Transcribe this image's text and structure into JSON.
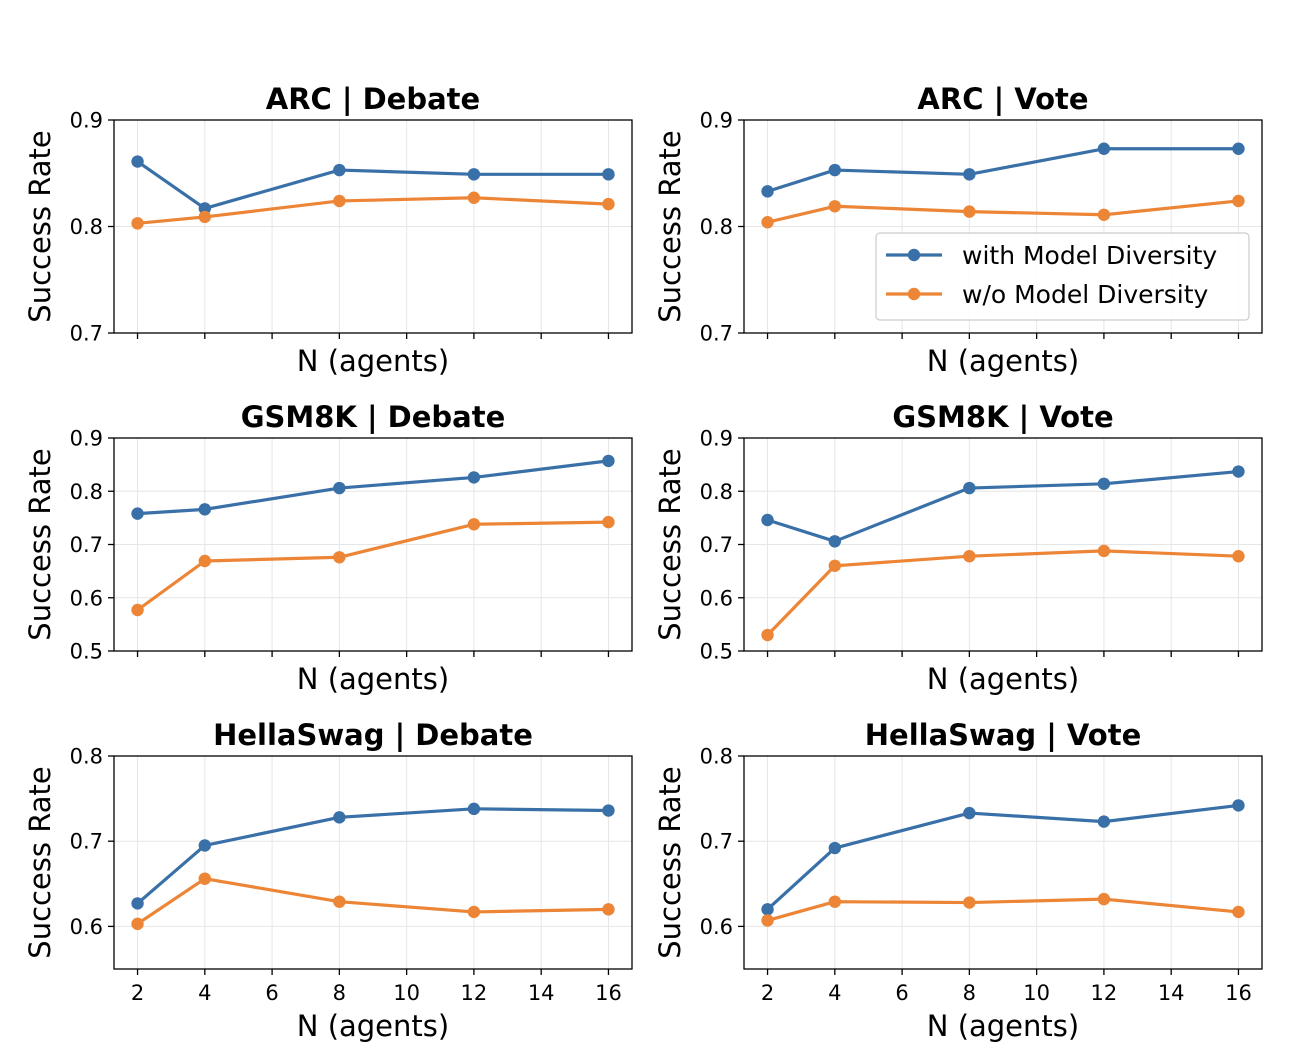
{
  "chart_data": [
    {
      "type": "line",
      "title": "ARC | Debate",
      "xlabel": "N (agents)",
      "ylabel": "Success Rate",
      "x": [
        2,
        4,
        8,
        12,
        16
      ],
      "xlim": [
        1.3,
        16.7
      ],
      "ylim": [
        0.7,
        0.9
      ],
      "xticks": [
        2,
        4,
        6,
        8,
        10,
        12,
        14,
        16
      ],
      "yticks": [
        0.7,
        0.8,
        0.9
      ],
      "show_xticklabels": false,
      "show_legend": false,
      "series": [
        {
          "name": "with Model Diversity",
          "color": "#3a70a8",
          "values": [
            0.861,
            0.817,
            0.853,
            0.849,
            0.849
          ]
        },
        {
          "name": "w/o Model Diversity",
          "color": "#ec8536",
          "values": [
            0.803,
            0.809,
            0.824,
            0.827,
            0.821
          ]
        }
      ]
    },
    {
      "type": "line",
      "title": "ARC | Vote",
      "xlabel": "N (agents)",
      "ylabel": "Success Rate",
      "x": [
        2,
        4,
        8,
        12,
        16
      ],
      "xlim": [
        1.3,
        16.7
      ],
      "ylim": [
        0.7,
        0.9
      ],
      "xticks": [
        2,
        4,
        6,
        8,
        10,
        12,
        14,
        16
      ],
      "yticks": [
        0.7,
        0.8,
        0.9
      ],
      "show_xticklabels": false,
      "show_legend": true,
      "legend_position": "center-right",
      "series": [
        {
          "name": "with Model Diversity",
          "color": "#3a70a8",
          "values": [
            0.833,
            0.853,
            0.849,
            0.873,
            0.873
          ]
        },
        {
          "name": "w/o Model Diversity",
          "color": "#ec8536",
          "values": [
            0.804,
            0.819,
            0.814,
            0.811,
            0.824
          ]
        }
      ]
    },
    {
      "type": "line",
      "title": "GSM8K | Debate",
      "xlabel": "N (agents)",
      "ylabel": "Success Rate",
      "x": [
        2,
        4,
        8,
        12,
        16
      ],
      "xlim": [
        1.3,
        16.7
      ],
      "ylim": [
        0.5,
        0.9
      ],
      "xticks": [
        2,
        4,
        6,
        8,
        10,
        12,
        14,
        16
      ],
      "yticks": [
        0.5,
        0.6,
        0.7,
        0.8,
        0.9
      ],
      "show_xticklabels": false,
      "show_legend": false,
      "series": [
        {
          "name": "with Model Diversity",
          "color": "#3a70a8",
          "values": [
            0.758,
            0.766,
            0.806,
            0.826,
            0.857
          ]
        },
        {
          "name": "w/o Model Diversity",
          "color": "#ec8536",
          "values": [
            0.577,
            0.669,
            0.676,
            0.738,
            0.742
          ]
        }
      ]
    },
    {
      "type": "line",
      "title": "GSM8K | Vote",
      "xlabel": "N (agents)",
      "ylabel": "Success Rate",
      "x": [
        2,
        4,
        8,
        12,
        16
      ],
      "xlim": [
        1.3,
        16.7
      ],
      "ylim": [
        0.5,
        0.9
      ],
      "xticks": [
        2,
        4,
        6,
        8,
        10,
        12,
        14,
        16
      ],
      "yticks": [
        0.5,
        0.6,
        0.7,
        0.8,
        0.9
      ],
      "show_xticklabels": false,
      "show_legend": false,
      "series": [
        {
          "name": "with Model Diversity",
          "color": "#3a70a8",
          "values": [
            0.746,
            0.706,
            0.806,
            0.814,
            0.837
          ]
        },
        {
          "name": "w/o Model Diversity",
          "color": "#ec8536",
          "values": [
            0.53,
            0.66,
            0.678,
            0.688,
            0.678
          ]
        }
      ]
    },
    {
      "type": "line",
      "title": "HellaSwag | Debate",
      "xlabel": "N (agents)",
      "ylabel": "Success Rate",
      "x": [
        2,
        4,
        8,
        12,
        16
      ],
      "xlim": [
        1.3,
        16.7
      ],
      "ylim": [
        0.55,
        0.8
      ],
      "xticks": [
        2,
        4,
        6,
        8,
        10,
        12,
        14,
        16
      ],
      "yticks": [
        0.6,
        0.7,
        0.8
      ],
      "show_xticklabels": true,
      "show_legend": false,
      "series": [
        {
          "name": "with Model Diversity",
          "color": "#3a70a8",
          "values": [
            0.627,
            0.695,
            0.728,
            0.738,
            0.736
          ]
        },
        {
          "name": "w/o Model Diversity",
          "color": "#ec8536",
          "values": [
            0.603,
            0.656,
            0.629,
            0.617,
            0.62
          ]
        }
      ]
    },
    {
      "type": "line",
      "title": "HellaSwag | Vote",
      "xlabel": "N (agents)",
      "ylabel": "Success Rate",
      "x": [
        2,
        4,
        8,
        12,
        16
      ],
      "xlim": [
        1.3,
        16.7
      ],
      "ylim": [
        0.55,
        0.8
      ],
      "xticks": [
        2,
        4,
        6,
        8,
        10,
        12,
        14,
        16
      ],
      "yticks": [
        0.6,
        0.7,
        0.8
      ],
      "show_xticklabels": true,
      "show_legend": false,
      "series": [
        {
          "name": "with Model Diversity",
          "color": "#3a70a8",
          "values": [
            0.62,
            0.692,
            0.733,
            0.723,
            0.742
          ]
        },
        {
          "name": "w/o Model Diversity",
          "color": "#ec8536",
          "values": [
            0.607,
            0.629,
            0.628,
            0.632,
            0.617
          ]
        }
      ]
    }
  ]
}
